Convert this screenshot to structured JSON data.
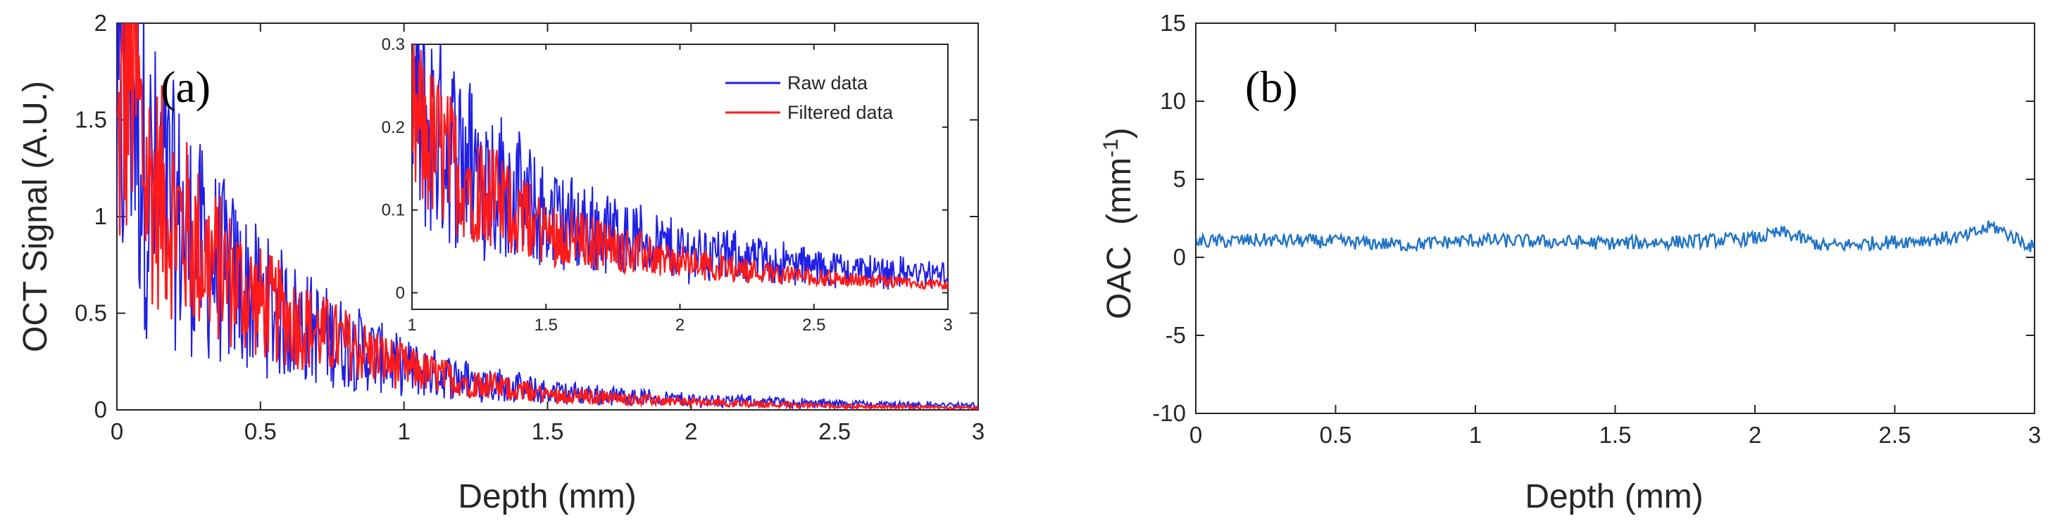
{
  "colors": {
    "raw": "#1f1fe6",
    "filtered": "#ff1a1a",
    "oac": "#1f73c6",
    "axis": "#262626"
  },
  "chart_data": [
    {
      "type": "line",
      "panel_label": "(a)",
      "xlabel": "Depth (mm)",
      "ylabel": "OCT Signal (A.U.)",
      "xlim": [
        0,
        3
      ],
      "ylim": [
        0,
        2
      ],
      "xticks": [
        "0",
        "0.5",
        "1",
        "1.5",
        "2",
        "2.5",
        "3"
      ],
      "yticks": [
        "0",
        "0.5",
        "1",
        "1.5",
        "2"
      ],
      "series": [
        {
          "name": "Raw data",
          "x": [
            0,
            0.05,
            0.1,
            0.2,
            0.3,
            0.5,
            0.7,
            0.9,
            1.0,
            1.2,
            1.5,
            2.0,
            2.5,
            3.0
          ],
          "values": [
            1.3,
            1.85,
            1.2,
            1.0,
            0.8,
            0.55,
            0.4,
            0.28,
            0.22,
            0.16,
            0.09,
            0.05,
            0.03,
            0.02
          ]
        },
        {
          "name": "Filtered data",
          "x": [
            0,
            0.05,
            0.1,
            0.2,
            0.3,
            0.5,
            0.7,
            0.9,
            1.0,
            1.2,
            1.5,
            2.0,
            2.5,
            3.0
          ],
          "values": [
            1.3,
            1.85,
            1.2,
            1.0,
            0.8,
            0.55,
            0.4,
            0.28,
            0.22,
            0.15,
            0.08,
            0.04,
            0.02,
            0.01
          ]
        }
      ],
      "inset": {
        "xlim": [
          1,
          3
        ],
        "ylim": [
          -0.02,
          0.3
        ],
        "xticks": [
          "1",
          "1.5",
          "2",
          "2.5",
          "3"
        ],
        "yticks": [
          "0",
          "0.1",
          "0.2",
          "0.3"
        ],
        "legend": [
          "Raw data",
          "Filtered data"
        ],
        "legend_position": "top-right"
      }
    },
    {
      "type": "line",
      "panel_label": "(b)",
      "xlabel": "Depth (mm)",
      "ylabel": "OAC",
      "ylabel_unit": "(mm",
      "ylabel_sup": "-1",
      "ylabel_close": ")",
      "xlim": [
        0,
        3
      ],
      "ylim": [
        -10,
        15
      ],
      "xticks": [
        "0",
        "0.5",
        "1",
        "1.5",
        "2",
        "2.5",
        "3"
      ],
      "yticks": [
        "-10",
        "-5",
        "0",
        "5",
        "10",
        "15"
      ],
      "series": [
        {
          "name": "OAC",
          "x": [
            0,
            0.25,
            0.5,
            0.75,
            1.0,
            1.25,
            1.5,
            1.75,
            2.0,
            2.1,
            2.25,
            2.5,
            2.75,
            2.85,
            3.0
          ],
          "values": [
            1.0,
            1.1,
            1.0,
            0.8,
            1.1,
            1.0,
            0.9,
            1.0,
            1.2,
            1.6,
            0.7,
            1.0,
            1.3,
            2.0,
            0.6
          ]
        }
      ]
    }
  ]
}
